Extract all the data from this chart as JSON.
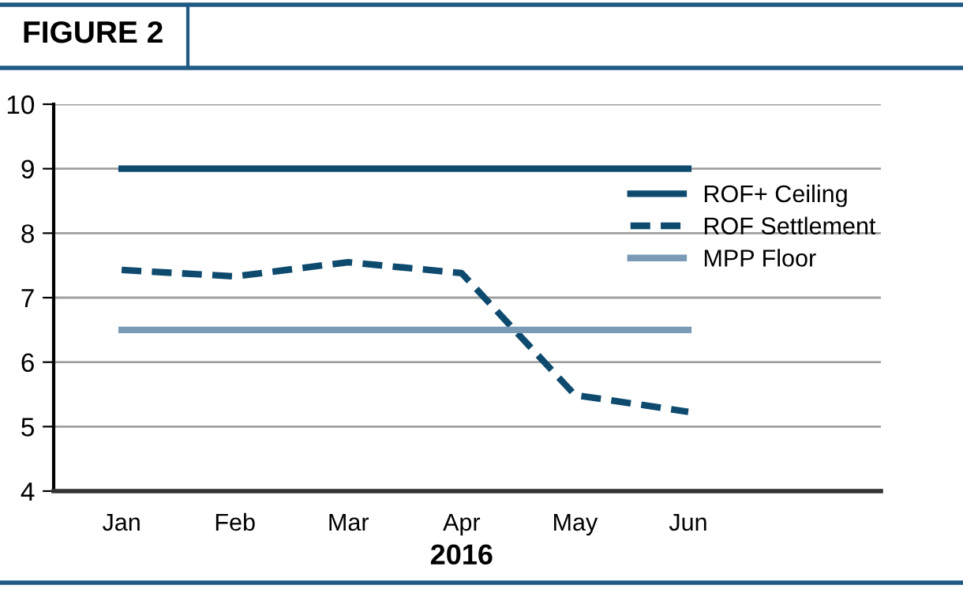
{
  "chart_data": {
    "type": "line",
    "title": "FIGURE 2",
    "xlabel": "2016",
    "categories": [
      "Jan",
      "Feb",
      "Mar",
      "Apr",
      "May",
      "Jun"
    ],
    "series": [
      {
        "name": "ROF+ Ceiling",
        "color": "#0d4a6e",
        "line_style": "solid",
        "values": [
          9,
          9,
          9,
          9,
          9,
          9
        ]
      },
      {
        "name": "ROF Settlement",
        "color": "#0d4a6e",
        "line_style": "dashed",
        "values": [
          7.43,
          7.33,
          7.55,
          7.38,
          5.49,
          5.23
        ]
      },
      {
        "name": "MPP Floor",
        "color": "#7a9ab5",
        "line_style": "solid",
        "values": [
          6.5,
          6.5,
          6.5,
          6.5,
          6.5,
          6.5
        ]
      }
    ],
    "ylim": [
      4,
      10
    ],
    "yticks": [
      4,
      5,
      6,
      7,
      8,
      9,
      10
    ],
    "grid": "y",
    "legend": "right",
    "marker": "none"
  }
}
